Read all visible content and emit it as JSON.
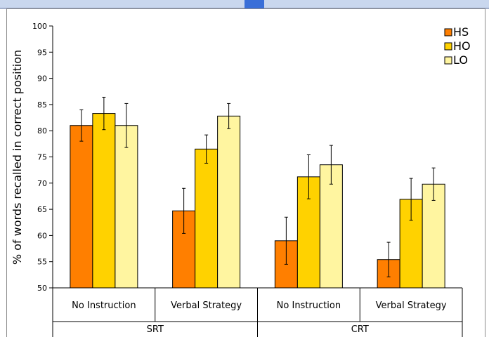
{
  "chart_data": {
    "type": "bar",
    "ylabel": "% of words recalled in correct position",
    "ylim": [
      50,
      100
    ],
    "yticks": [
      50,
      55,
      60,
      65,
      70,
      75,
      80,
      85,
      90,
      95,
      100
    ],
    "categories": [
      "No Instruction",
      "Verbal Strategy",
      "No Instruction",
      "Verbal Strategy"
    ],
    "groups": [
      {
        "label": "SRT",
        "span": [
          0,
          1
        ]
      },
      {
        "label": "CRT",
        "span": [
          2,
          3
        ]
      }
    ],
    "series": [
      {
        "name": "HS",
        "color": "#ff7f00",
        "values": [
          81.0,
          64.7,
          59.0,
          55.4
        ],
        "errors": [
          3.0,
          4.3,
          4.5,
          3.3
        ]
      },
      {
        "name": "HO",
        "color": "#ffd200",
        "values": [
          83.3,
          76.5,
          71.2,
          66.9
        ],
        "errors": [
          3.1,
          2.7,
          4.2,
          4.0
        ]
      },
      {
        "name": "LO",
        "color": "#fff5a0",
        "values": [
          81.0,
          82.8,
          73.5,
          69.8
        ],
        "errors": [
          4.2,
          2.4,
          3.7,
          3.1
        ]
      }
    ],
    "legend_position": "top-right",
    "grid": false
  }
}
